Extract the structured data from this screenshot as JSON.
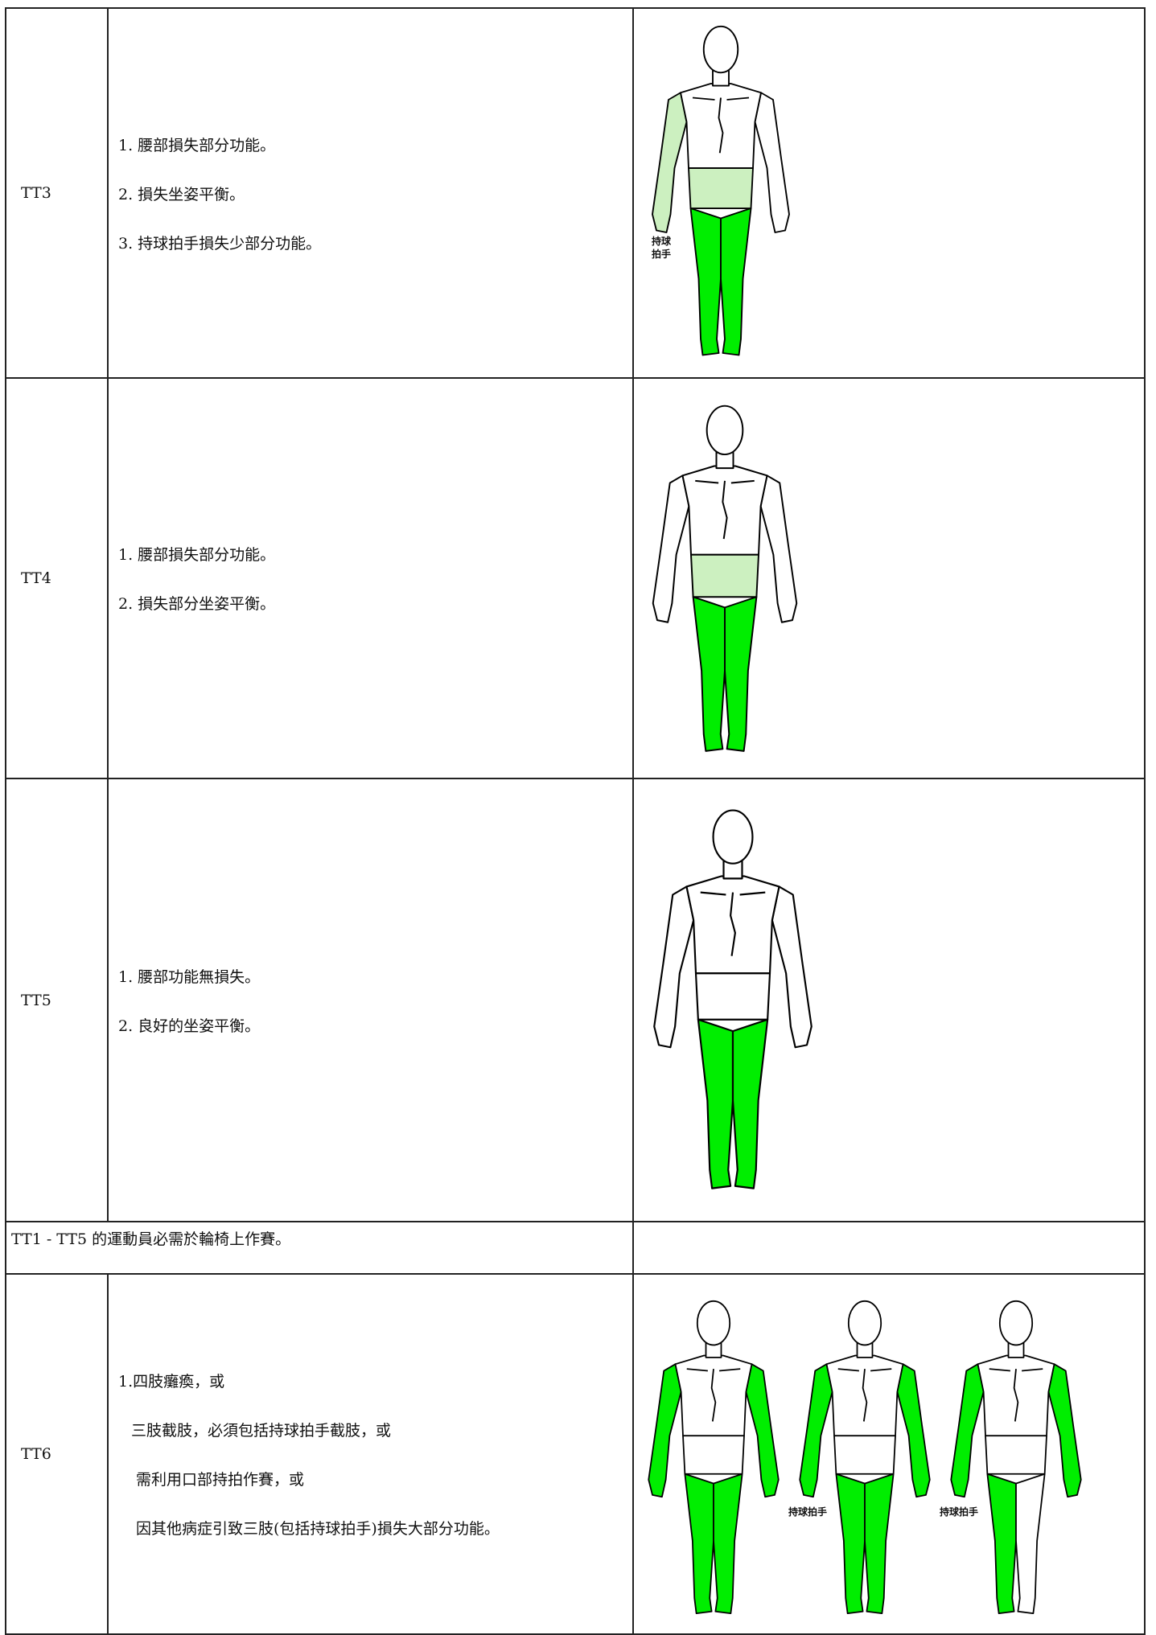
{
  "rows": [
    {
      "class": "TT3",
      "items": [
        "1. 腰部損失部分功能。",
        "2. 損失坐姿平衡。",
        "3. 持球拍手損失少部分功能。"
      ],
      "figure_labels": [
        "持球",
        "拍手"
      ]
    },
    {
      "class": "TT4",
      "items": [
        "1. 腰部損失部分功能。",
        "2. 損失部分坐姿平衡。"
      ]
    },
    {
      "class": "TT5",
      "items": [
        "1. 腰部功能無損失。",
        "2. 良好的坐姿平衡。"
      ]
    },
    {
      "note": "TT1 - TT5 的運動員必需於輪椅上作賽。"
    },
    {
      "class": "TT6",
      "items": [
        "1.四肢癱瘓，或",
        "三肢截肢，必須包括持球拍手截肢，或",
        "需利用口部持拍作賽，或",
        "因其他病症引致三肢(包括持球拍手)損失大部分功能。"
      ],
      "figure_labels": [
        "持球拍手",
        "持球拍手"
      ]
    }
  ]
}
